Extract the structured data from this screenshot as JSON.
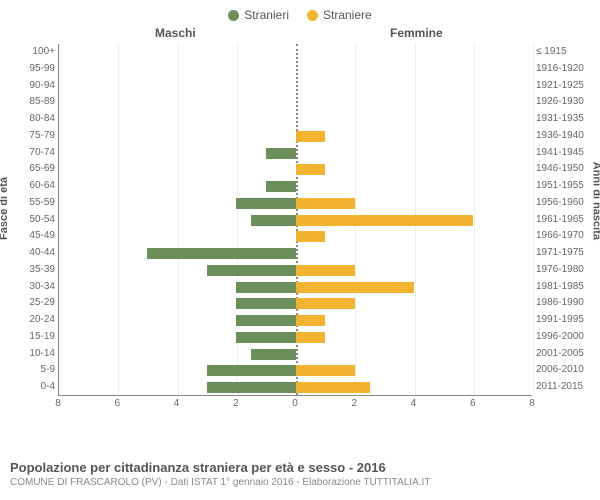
{
  "legend": [
    {
      "label": "Stranieri",
      "color": "#6b8e5a"
    },
    {
      "label": "Straniere",
      "color": "#f2b430"
    }
  ],
  "headers": {
    "left": "Maschi",
    "right": "Femmine"
  },
  "y_left_axis_label": "Fasce di età",
  "y_right_axis_label": "Anni di nascita",
  "chart": {
    "type": "pyramid-bar",
    "x_max": 8,
    "x_ticks": [
      8,
      6,
      4,
      2,
      0,
      2,
      4,
      6,
      8
    ],
    "bar_color_m": "#6b8e5a",
    "bar_color_f": "#f2b430",
    "grid_color": "#eeeeee",
    "axis_color": "#888888",
    "background_color": "#ffffff",
    "rows": [
      {
        "age": "100+",
        "birth": "≤ 1915",
        "m": 0,
        "f": 0
      },
      {
        "age": "95-99",
        "birth": "1916-1920",
        "m": 0,
        "f": 0
      },
      {
        "age": "90-94",
        "birth": "1921-1925",
        "m": 0,
        "f": 0
      },
      {
        "age": "85-89",
        "birth": "1926-1930",
        "m": 0,
        "f": 0
      },
      {
        "age": "80-84",
        "birth": "1931-1935",
        "m": 0,
        "f": 0
      },
      {
        "age": "75-79",
        "birth": "1936-1940",
        "m": 0,
        "f": 1
      },
      {
        "age": "70-74",
        "birth": "1941-1945",
        "m": 1,
        "f": 0
      },
      {
        "age": "65-69",
        "birth": "1946-1950",
        "m": 0,
        "f": 1
      },
      {
        "age": "60-64",
        "birth": "1951-1955",
        "m": 1,
        "f": 0
      },
      {
        "age": "55-59",
        "birth": "1956-1960",
        "m": 2,
        "f": 2
      },
      {
        "age": "50-54",
        "birth": "1961-1965",
        "m": 1.5,
        "f": 6
      },
      {
        "age": "45-49",
        "birth": "1966-1970",
        "m": 0,
        "f": 1
      },
      {
        "age": "40-44",
        "birth": "1971-1975",
        "m": 5,
        "f": 0
      },
      {
        "age": "35-39",
        "birth": "1976-1980",
        "m": 3,
        "f": 2
      },
      {
        "age": "30-34",
        "birth": "1981-1985",
        "m": 2,
        "f": 4
      },
      {
        "age": "25-29",
        "birth": "1986-1990",
        "m": 2,
        "f": 2
      },
      {
        "age": "20-24",
        "birth": "1991-1995",
        "m": 2,
        "f": 1
      },
      {
        "age": "15-19",
        "birth": "1996-2000",
        "m": 2,
        "f": 1
      },
      {
        "age": "10-14",
        "birth": "2001-2005",
        "m": 1.5,
        "f": 0
      },
      {
        "age": "5-9",
        "birth": "2006-2010",
        "m": 3,
        "f": 2
      },
      {
        "age": "0-4",
        "birth": "2011-2015",
        "m": 3,
        "f": 2.5
      }
    ]
  },
  "title": "Popolazione per cittadinanza straniera per età e sesso - 2016",
  "subtitle": "COMUNE DI FRASCAROLO (PV) - Dati ISTAT 1° gennaio 2016 - Elaborazione TUTTITALIA.IT"
}
